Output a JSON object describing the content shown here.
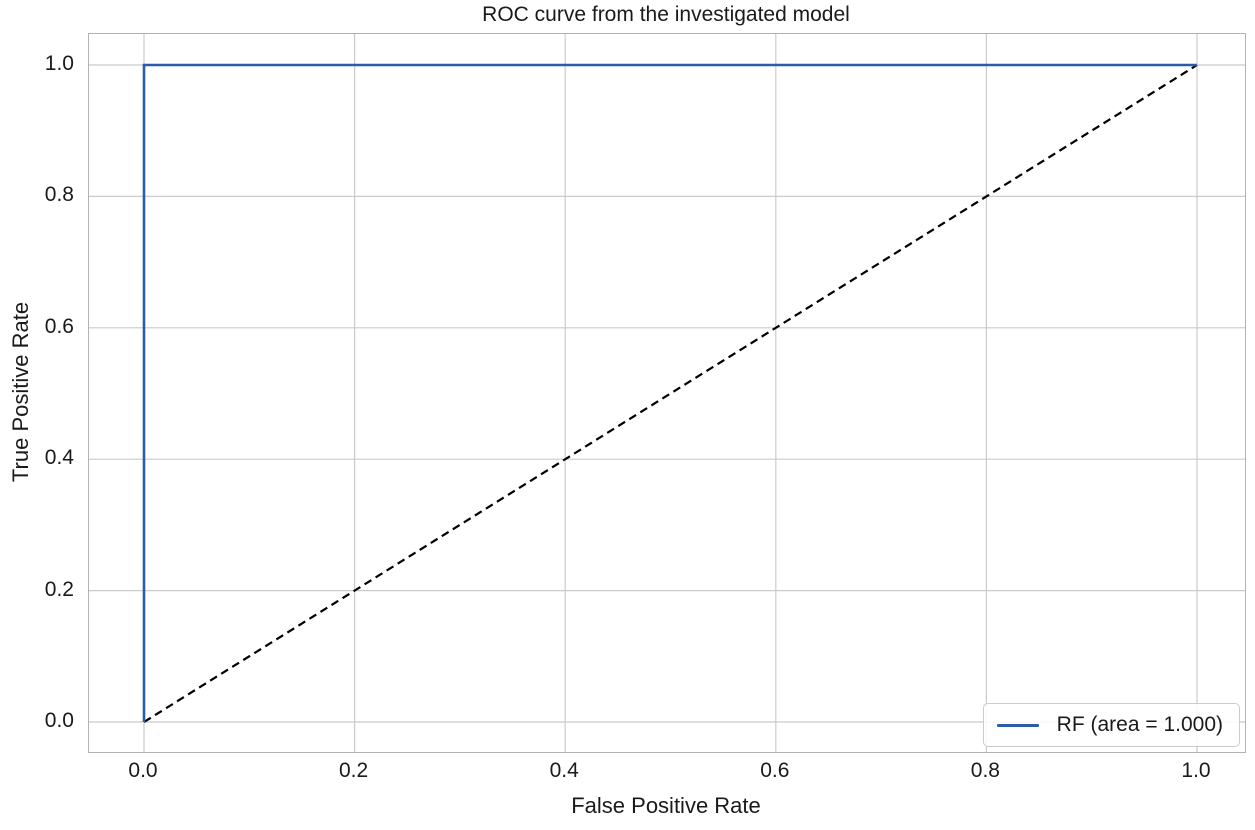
{
  "figure": {
    "title": "ROC curve from the investigated model",
    "xlabel": "False Positive Rate",
    "ylabel": "True Positive Rate"
  },
  "legend": {
    "entries": [
      {
        "label": "RF (area = 1.000)",
        "color": "#2a5caa",
        "dash": null
      }
    ],
    "position": "lower right"
  },
  "colors": {
    "roc_line": "#2a5caa",
    "chance_line": "#000000",
    "grid": "#cbcbcb",
    "spine": "#b2b2b2",
    "text": "#1a1a1a",
    "background": "#ffffff"
  },
  "chart_data": {
    "type": "line",
    "title": "ROC curve from the investigated model",
    "xlabel": "False Positive Rate",
    "ylabel": "True Positive Rate",
    "xlim": [
      -0.05,
      1.05
    ],
    "ylim": [
      -0.05,
      1.05
    ],
    "grid": true,
    "legend_position": "lower right",
    "x_ticks": [
      {
        "v": 0.0,
        "label": "0.0"
      },
      {
        "v": 0.2,
        "label": "0.2"
      },
      {
        "v": 0.4,
        "label": "0.4"
      },
      {
        "v": 0.6,
        "label": "0.6"
      },
      {
        "v": 0.8,
        "label": "0.8"
      },
      {
        "v": 1.0,
        "label": "1.0"
      }
    ],
    "y_ticks": [
      {
        "v": 0.0,
        "label": "0.0"
      },
      {
        "v": 0.2,
        "label": "0.2"
      },
      {
        "v": 0.4,
        "label": "0.4"
      },
      {
        "v": 0.6,
        "label": "0.6"
      },
      {
        "v": 0.8,
        "label": "0.8"
      },
      {
        "v": 1.0,
        "label": "1.0"
      }
    ],
    "series": [
      {
        "name": "chance-diagonal",
        "color": "#000000",
        "dash": "8 5",
        "width": 2.2,
        "points": [
          [
            0,
            0
          ],
          [
            1,
            1
          ]
        ]
      },
      {
        "name": "RF (area = 1.000)",
        "color": "#2a5caa",
        "dash": null,
        "width": 2.6,
        "points": [
          [
            0,
            0
          ],
          [
            0,
            1
          ],
          [
            1,
            1
          ]
        ]
      }
    ],
    "auc": 1.0,
    "classifier": "RF"
  }
}
